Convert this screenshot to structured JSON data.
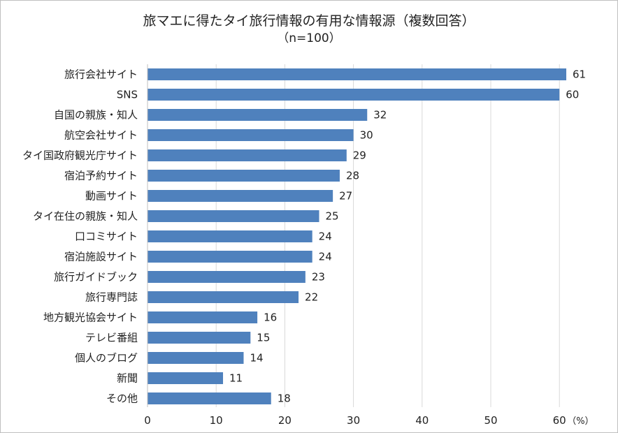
{
  "chart_data": {
    "type": "bar",
    "orientation": "horizontal",
    "title": "旅マエに得たタイ旅行情報の有用な情報源（複数回答）",
    "subtitle": "（n=100）",
    "categories": [
      "旅行会社サイト",
      "SNS",
      "自国の親族・知人",
      "航空会社サイト",
      "タイ国政府観光庁サイト",
      "宿泊予約サイト",
      "動画サイト",
      "タイ在住の親族・知人",
      "口コミサイト",
      "宿泊施設サイト",
      "旅行ガイドブック",
      "旅行専門誌",
      "地方観光協会サイト",
      "テレビ番組",
      "個人のブログ",
      "新聞",
      "その他"
    ],
    "values": [
      61,
      60,
      32,
      30,
      29,
      28,
      27,
      25,
      24,
      24,
      23,
      22,
      16,
      15,
      14,
      11,
      18
    ],
    "xlim": [
      0,
      60
    ],
    "xticks": [
      0,
      10,
      20,
      30,
      40,
      50,
      60
    ],
    "unit_label": "（%）",
    "bar_color": "#4f81bd",
    "grid": true,
    "legend": "none"
  }
}
